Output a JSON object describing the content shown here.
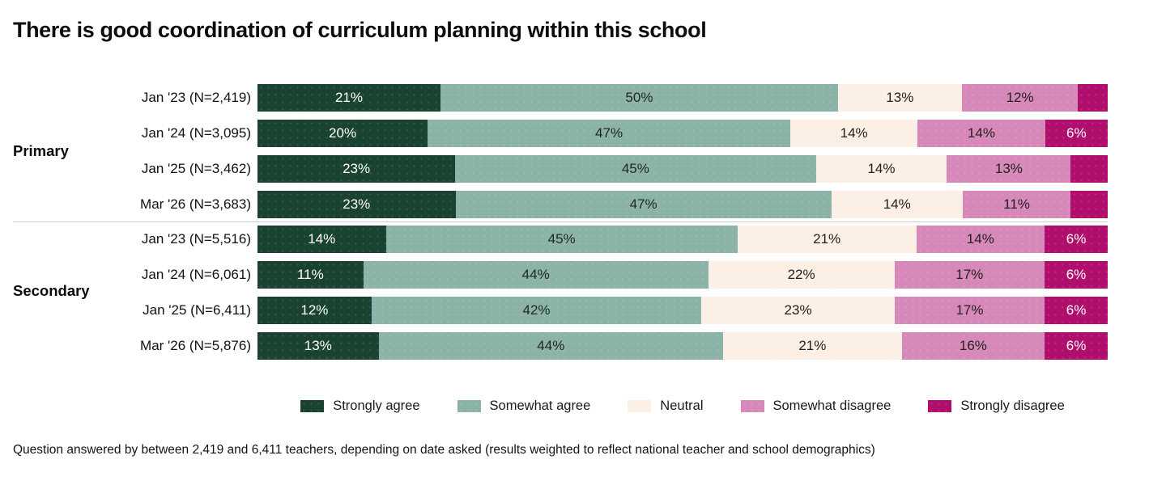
{
  "title": "There is good coordination of curriculum planning within this school",
  "footnote": "Question answered by between 2,419 and 6,411 teachers, depending on date asked (results weighted to reflect national teacher and school demographics)",
  "chart_data": {
    "type": "bar",
    "variant": "stacked-horizontal-100pct",
    "orientation": "horizontal",
    "unit": "%",
    "grid": false,
    "legend_position": "bottom-center",
    "series": [
      {
        "name": "Strongly agree",
        "color": "#1a4230",
        "label_color": "#ffffff"
      },
      {
        "name": "Somewhat agree",
        "color": "#8cb3a7",
        "label_color": "#1d2622"
      },
      {
        "name": "Neutral",
        "color": "#fcefe5",
        "label_color": "#242020"
      },
      {
        "name": "Somewhat disagree",
        "color": "#d689b8",
        "label_color": "#242020"
      },
      {
        "name": "Strongly disagree",
        "color": "#b00e6c",
        "label_color": "#ffffff"
      }
    ],
    "groups": [
      {
        "name": "Primary",
        "rows": [
          {
            "label": "Jan '23 (N=2,419)",
            "values": [
              21,
              50,
              13,
              12,
              4
            ],
            "segment_labels": [
              "21%",
              "50%",
              "13%",
              "12%",
              ""
            ]
          },
          {
            "label": "Jan '24 (N=3,095)",
            "values": [
              20,
              47,
              14,
              14,
              6
            ],
            "segment_labels": [
              "20%",
              "47%",
              "14%",
              "14%",
              "6%"
            ]
          },
          {
            "label": "Jan '25 (N=3,462)",
            "values": [
              23,
              45,
              14,
              13,
              5
            ],
            "segment_labels": [
              "23%",
              "45%",
              "14%",
              "13%",
              ""
            ]
          },
          {
            "label": "Mar '26 (N=3,683)",
            "values": [
              23,
              47,
              14,
              11,
              5
            ],
            "segment_labels": [
              "23%",
              "47%",
              "14%",
              "11%",
              ""
            ]
          }
        ]
      },
      {
        "name": "Secondary",
        "rows": [
          {
            "label": "Jan '23 (N=5,516)",
            "values": [
              14,
              45,
              21,
              14,
              6
            ],
            "segment_labels": [
              "14%",
              "45%",
              "21%",
              "14%",
              "6%"
            ]
          },
          {
            "label": "Jan '24 (N=6,061)",
            "values": [
              11,
              44,
              22,
              17,
              6
            ],
            "segment_labels": [
              "11%",
              "44%",
              "22%",
              "17%",
              "6%"
            ]
          },
          {
            "label": "Jan '25 (N=6,411)",
            "values": [
              12,
              42,
              23,
              17,
              6
            ],
            "segment_labels": [
              "12%",
              "42%",
              "23%",
              "17%",
              "6%"
            ]
          },
          {
            "label": "Mar '26 (N=5,876)",
            "values": [
              13,
              44,
              21,
              16,
              6
            ],
            "segment_labels": [
              "13%",
              "44%",
              "21%",
              "16%",
              "6%"
            ]
          }
        ]
      }
    ]
  }
}
